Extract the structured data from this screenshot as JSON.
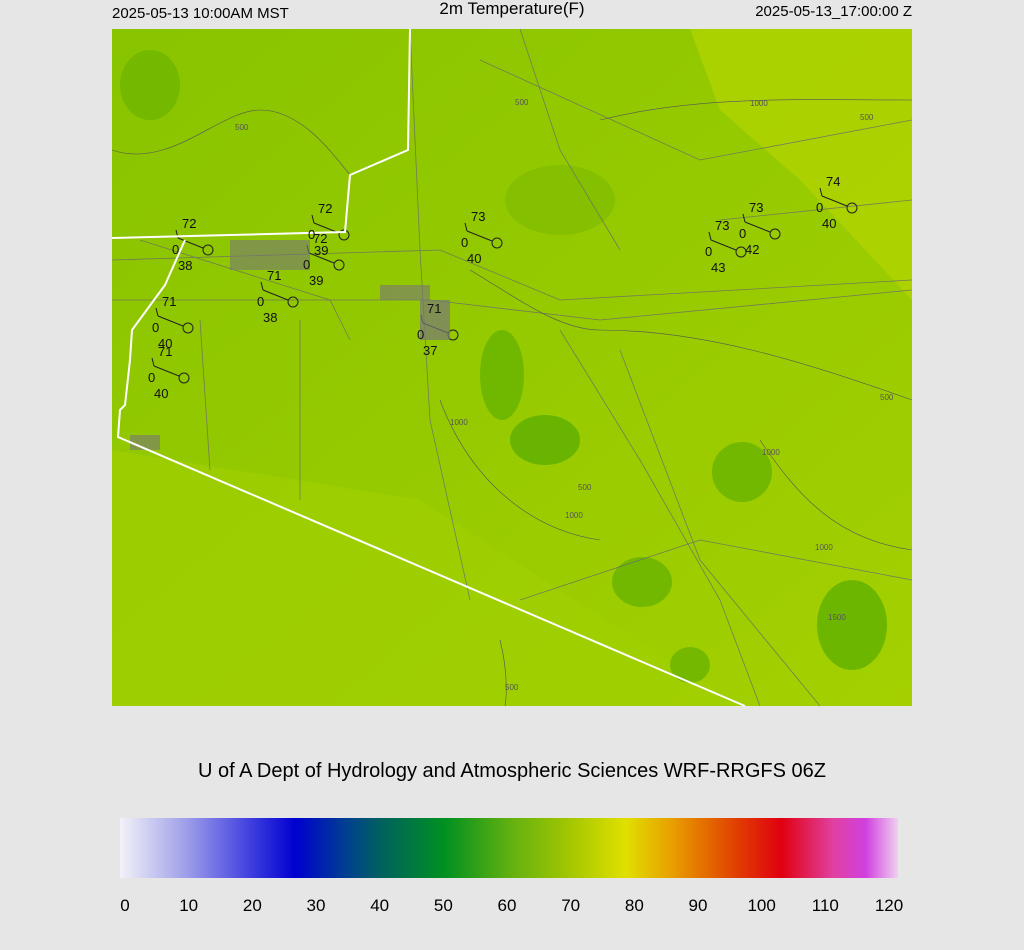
{
  "header": {
    "left": "2025-05-13 10:00AM MST",
    "title": "2m Temperature(F)",
    "right": "2025-05-13_17:00:00 Z"
  },
  "footer": "U of A Dept of Hydrology and Atmospheric Sciences WRF-RRGFS 06Z",
  "stations": [
    {
      "temp": 72,
      "wind": 0,
      "dewpoint": 38
    },
    {
      "temp": 72,
      "wind": 0,
      "dewpoint": 39
    },
    {
      "temp": 72,
      "wind": 0,
      "dewpoint": 39
    },
    {
      "temp": 71,
      "wind": 0,
      "dewpoint": 38
    },
    {
      "temp": 71,
      "wind": 0,
      "dewpoint": 40
    },
    {
      "temp": 71,
      "wind": 0,
      "dewpoint": 40
    },
    {
      "temp": 71,
      "wind": 0,
      "dewpoint": 37
    },
    {
      "temp": 73,
      "wind": 0,
      "dewpoint": 40
    },
    {
      "temp": 73,
      "wind": 0,
      "dewpoint": 42
    },
    {
      "temp": 73,
      "wind": 0,
      "dewpoint": 43
    },
    {
      "temp": 74,
      "wind": 0,
      "dewpoint": 40
    }
  ],
  "contour_labels": [
    500,
    500,
    1000,
    500,
    500,
    1000,
    1000,
    500,
    1000,
    1000,
    1500,
    500
  ],
  "colorbar": {
    "min": 0,
    "max": 120,
    "ticks": [
      0,
      10,
      20,
      30,
      40,
      50,
      60,
      70,
      80,
      90,
      100,
      110,
      120
    ],
    "stops": [
      {
        "value": 0,
        "color": "#f2f2f8"
      },
      {
        "value": 10,
        "color": "#a0a0ea"
      },
      {
        "value": 20,
        "color": "#4040e0"
      },
      {
        "value": 27,
        "color": "#0000d0"
      },
      {
        "value": 35,
        "color": "#004090"
      },
      {
        "value": 40,
        "color": "#006060"
      },
      {
        "value": 50,
        "color": "#009020"
      },
      {
        "value": 60,
        "color": "#60b010"
      },
      {
        "value": 70,
        "color": "#a8c800"
      },
      {
        "value": 78,
        "color": "#e0e000"
      },
      {
        "value": 85,
        "color": "#e8a000"
      },
      {
        "value": 95,
        "color": "#e04000"
      },
      {
        "value": 102,
        "color": "#e00010"
      },
      {
        "value": 110,
        "color": "#e040a0"
      },
      {
        "value": 115,
        "color": "#d040e0"
      },
      {
        "value": 120,
        "color": "#f0d0f0"
      }
    ]
  }
}
